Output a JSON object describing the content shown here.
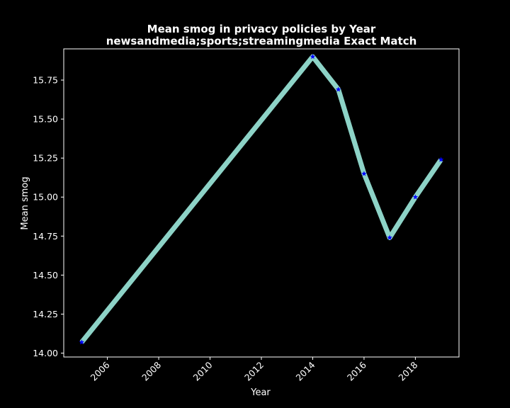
{
  "chart_data": {
    "type": "line",
    "title": "Mean smog in privacy policies by Year",
    "subtitle": "newsandmedia;sports;streamingmedia Exact Match",
    "xlabel": "Year",
    "ylabel": "Mean smog",
    "xlim": [
      2004.3,
      2019.7
    ],
    "ylim": [
      13.975,
      15.95
    ],
    "x_ticks": [
      2006,
      2008,
      2010,
      2012,
      2014,
      2016,
      2018
    ],
    "y_ticks": [
      14.0,
      14.25,
      14.5,
      14.75,
      15.0,
      15.25,
      15.5,
      15.75
    ],
    "grid": false,
    "series": [
      {
        "x": [
          2005,
          2014,
          2015,
          2016,
          2017,
          2018,
          2019
        ],
        "values": [
          14.07,
          15.9,
          15.69,
          15.15,
          14.74,
          15.0,
          15.24
        ],
        "line_color": "#8dd3c7",
        "marker_color": "#0000ff",
        "marker": "star"
      }
    ],
    "colors": {
      "background": "#000000",
      "text": "#ffffff",
      "spine": "#ffffff"
    }
  }
}
